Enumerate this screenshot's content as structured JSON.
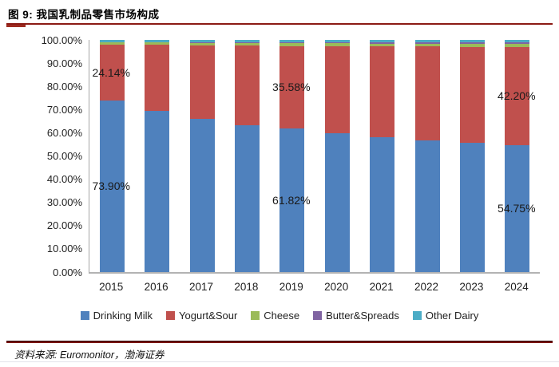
{
  "header": {
    "title": "图 9: 我国乳制品零售市场构成"
  },
  "footer": {
    "source": "资料来源: Euromonitor，渤海证券"
  },
  "colors": {
    "accent_rule": "#8B1A14",
    "drinking_milk": "#4F81BD",
    "yogurt_sour": "#C0504D",
    "cheese": "#9BBB59",
    "butter_spreads": "#8064A2",
    "other_dairy": "#4BACC6"
  },
  "chart_data": {
    "type": "bar",
    "stacked": true,
    "percent_stacked": true,
    "title": "我国乳制品零售市场构成",
    "xlabel": "",
    "ylabel": "",
    "ylim": [
      0,
      100
    ],
    "grid": false,
    "legend_position": "bottom",
    "categories": [
      "2015",
      "2016",
      "2017",
      "2018",
      "2019",
      "2020",
      "2021",
      "2022",
      "2023",
      "2024"
    ],
    "series": [
      {
        "name": "Drinking Milk",
        "color": "#4F81BD",
        "values": [
          73.9,
          69.4,
          66.0,
          63.3,
          61.82,
          59.7,
          58.1,
          56.7,
          55.6,
          54.75
        ]
      },
      {
        "name": "Yogurt&Sour",
        "color": "#C0504D",
        "values": [
          24.14,
          28.48,
          31.7,
          34.25,
          35.58,
          37.6,
          39.1,
          40.45,
          41.45,
          42.2
        ]
      },
      {
        "name": "Cheese",
        "color": "#9BBB59",
        "values": [
          0.9,
          0.95,
          1.0,
          1.1,
          1.15,
          1.2,
          1.25,
          1.3,
          1.35,
          1.4
        ]
      },
      {
        "name": "Butter&Spreads",
        "color": "#8064A2",
        "values": [
          0.2,
          0.25,
          0.3,
          0.35,
          0.45,
          0.5,
          0.55,
          0.6,
          0.65,
          0.75
        ]
      },
      {
        "name": "Other Dairy",
        "color": "#4BACC6",
        "values": [
          0.86,
          0.92,
          1.0,
          1.0,
          1.0,
          1.0,
          1.0,
          0.95,
          0.95,
          0.9
        ]
      }
    ],
    "y_ticks": [
      "100.00%",
      "90.00%",
      "80.00%",
      "70.00%",
      "60.00%",
      "50.00%",
      "40.00%",
      "30.00%",
      "20.00%",
      "10.00%",
      "0.00%"
    ],
    "data_labels": [
      {
        "category": "2015",
        "series": "Yogurt&Sour",
        "text": "24.14%"
      },
      {
        "category": "2015",
        "series": "Drinking Milk",
        "text": "73.90%"
      },
      {
        "category": "2019",
        "series": "Yogurt&Sour",
        "text": "35.58%"
      },
      {
        "category": "2019",
        "series": "Drinking Milk",
        "text": "61.82%"
      },
      {
        "category": "2024",
        "series": "Yogurt&Sour",
        "text": "42.20%"
      },
      {
        "category": "2024",
        "series": "Drinking Milk",
        "text": "54.75%"
      }
    ]
  }
}
